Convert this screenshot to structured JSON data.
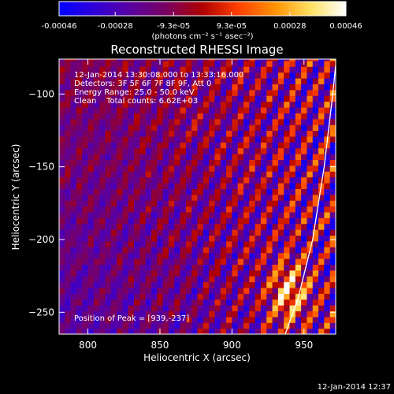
{
  "colorbar": {
    "tick_labels": [
      "-0.00046",
      "-0.00028",
      "-9.3e-05",
      "9.3e-05",
      "0.00028",
      "0.00046"
    ],
    "tick_values": [
      -0.00046,
      -0.00028,
      -9.3e-05,
      9.3e-05,
      0.00028,
      0.00046
    ],
    "range": [
      -0.00046,
      0.00046
    ],
    "units": "(photons cm⁻² s⁻¹ asec⁻²)",
    "stops": [
      "#0000ff",
      "#3000d8",
      "#5a00a0",
      "#7a0060",
      "#b00000",
      "#ff4000",
      "#ff9000",
      "#ffe060",
      "#ffffff"
    ]
  },
  "chart_data": {
    "type": "heatmap",
    "title": "Reconstructed RHESSI Image",
    "xlabel": "Heliocentric X (arcsec)",
    "ylabel": "Heliocentric Y (arcsec)",
    "xlim": [
      780,
      972
    ],
    "ylim": [
      -265,
      -76
    ],
    "x_ticks": [
      800,
      850,
      900,
      950
    ],
    "y_ticks": [
      -100,
      -150,
      -200,
      -250
    ],
    "annotations": {
      "time_range": "12-Jan-2014 13:30:08.000 to 13:33:16.000",
      "detectors": "Detectors: 3F 5F 6F 7F 8F 9F, Att 0",
      "energy": "Energy Range: 25.0 - 50.0 keV",
      "method": "Clean    Total counts: 6.62E+03",
      "peak": "Position of Peak = [939,-237]"
    },
    "peak": [
      939,
      -237
    ],
    "limb_curve": [
      [
        937,
        -265
      ],
      [
        946,
        -240
      ],
      [
        956,
        -200
      ],
      [
        964,
        -150
      ],
      [
        970,
        -100
      ],
      [
        972,
        -80
      ]
    ],
    "stripe_slope": 1.8,
    "stripe_period_arcsec": 14,
    "grid": false
  },
  "footer": {
    "date": "12-Jan-2014 12:37"
  }
}
